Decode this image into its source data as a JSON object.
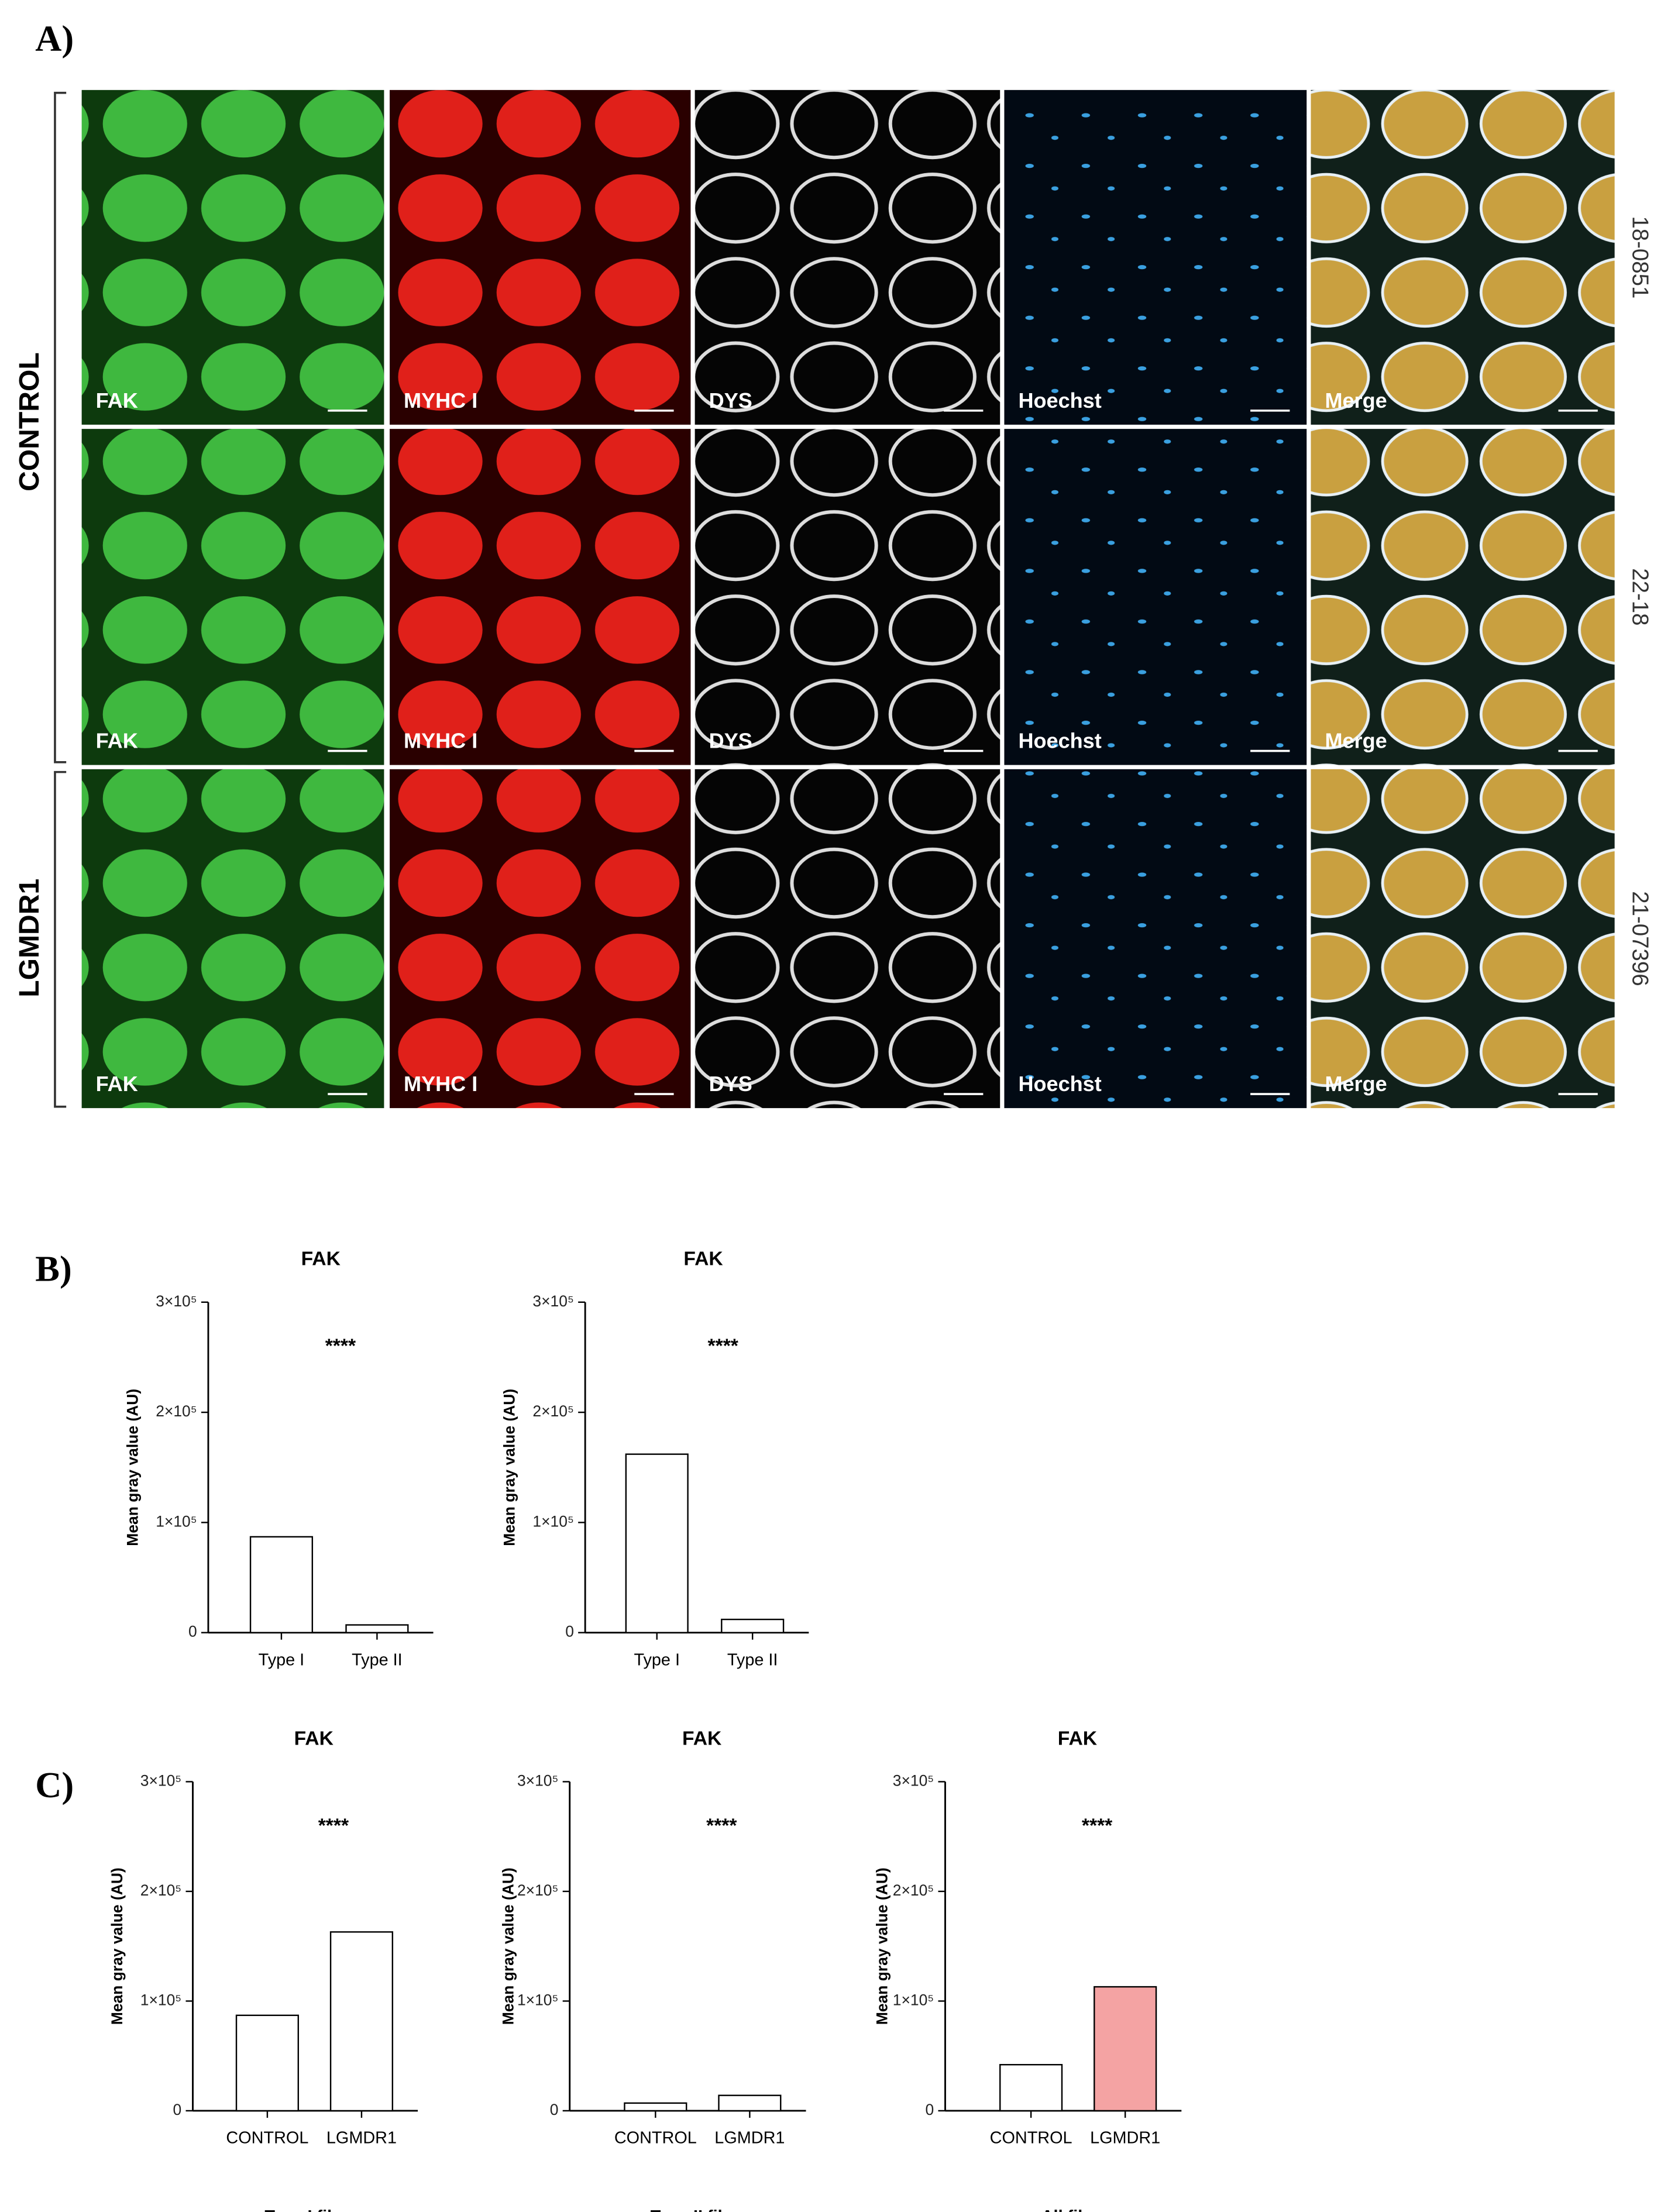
{
  "figure": {
    "panel_labels": [
      "A)",
      "B)",
      "C)"
    ],
    "groups": [
      "CONTROL",
      "LGMDR1"
    ],
    "samples": [
      "18-0851",
      "22-18",
      "21-07396"
    ],
    "channels": [
      "FAK",
      "MYHC I",
      "DYS",
      "Hoechst",
      "Merge"
    ]
  },
  "chart_data": [
    {
      "type": "bar",
      "title": "FAK",
      "ylabel": "Mean gray value (AU)",
      "annotation": "****",
      "categories": [
        "Type I",
        "Type II"
      ],
      "values": [
        87000,
        7000
      ],
      "colors": [
        "#ffffff",
        "#ffffff"
      ],
      "ylim": [
        0,
        300000
      ],
      "yticks": [
        0,
        {
          "value": 100000,
          "label": "1×10⁵"
        },
        {
          "value": 200000,
          "label": "2×10⁵"
        },
        {
          "value": 300000,
          "label": "3×10⁵"
        }
      ]
    },
    {
      "type": "bar",
      "title": "FAK",
      "ylabel": "Mean gray value (AU)",
      "annotation": "****",
      "categories": [
        "Type I",
        "Type II"
      ],
      "values": [
        162000,
        12000
      ],
      "colors": [
        "#ffffff",
        "#ffffff"
      ],
      "ylim": [
        0,
        300000
      ],
      "yticks": [
        0,
        {
          "value": 100000,
          "label": "1×10⁵"
        },
        {
          "value": 200000,
          "label": "2×10⁵"
        },
        {
          "value": 300000,
          "label": "3×10⁵"
        }
      ]
    },
    {
      "type": "bar",
      "title": "FAK",
      "ylabel": "Mean gray value (AU)",
      "xlabel": "Type I fibers",
      "annotation": "****",
      "categories": [
        "CONTROL",
        "LGMDR1"
      ],
      "values": [
        87000,
        163000
      ],
      "colors": [
        "#ffffff",
        "#ffffff"
      ],
      "ylim": [
        0,
        300000
      ],
      "yticks": [
        0,
        {
          "value": 100000,
          "label": "1×10⁵"
        },
        {
          "value": 200000,
          "label": "2×10⁵"
        },
        {
          "value": 300000,
          "label": "3×10⁵"
        }
      ]
    },
    {
      "type": "bar",
      "title": "FAK",
      "ylabel": "Mean gray value (AU)",
      "xlabel": "Type II fibers",
      "annotation": "****",
      "categories": [
        "CONTROL",
        "LGMDR1"
      ],
      "values": [
        7000,
        14000
      ],
      "colors": [
        "#ffffff",
        "#ffffff"
      ],
      "ylim": [
        0,
        300000
      ],
      "yticks": [
        0,
        {
          "value": 100000,
          "label": "1×10⁵"
        },
        {
          "value": 200000,
          "label": "2×10⁵"
        },
        {
          "value": 300000,
          "label": "3×10⁵"
        }
      ]
    },
    {
      "type": "bar",
      "title": "FAK",
      "ylabel": "Mean gray value (AU)",
      "xlabel": "All fibers",
      "annotation": "****",
      "categories": [
        "CONTROL",
        "LGMDR1"
      ],
      "values": [
        42000,
        113000
      ],
      "colors": [
        "#ffffff",
        "#f4a3a3"
      ],
      "ylim": [
        0,
        300000
      ],
      "yticks": [
        0,
        {
          "value": 100000,
          "label": "1×10⁵"
        },
        {
          "value": 200000,
          "label": "2×10⁵"
        },
        {
          "value": 300000,
          "label": "3×10⁵"
        }
      ]
    }
  ]
}
